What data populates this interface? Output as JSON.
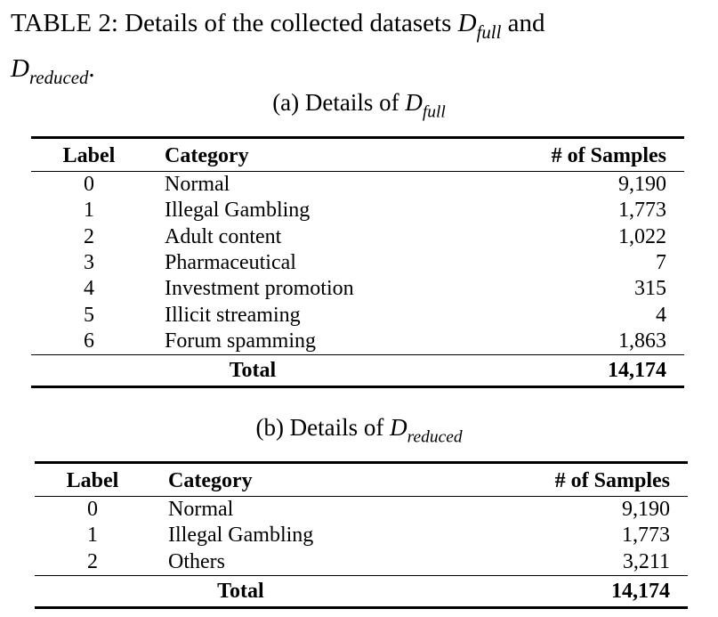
{
  "caption": {
    "prefix": "TABLE 2: Details of the collected datasets ",
    "math_full_base": "D",
    "math_full_sub": "full",
    "connector": " and",
    "math_reduced_base": "D",
    "math_reduced_sub": "reduced",
    "period": "."
  },
  "table_a": {
    "caption_prefix": "(a) Details of ",
    "caption_math_base": "D",
    "caption_math_sub": "full",
    "headers": [
      "Label",
      "Category",
      "# of Samples"
    ],
    "rows": [
      {
        "label": "0",
        "category": "Normal",
        "samples": "9,190"
      },
      {
        "label": "1",
        "category": "Illegal Gambling",
        "samples": "1,773"
      },
      {
        "label": "2",
        "category": "Adult content",
        "samples": "1,022"
      },
      {
        "label": "3",
        "category": "Pharmaceutical",
        "samples": "7"
      },
      {
        "label": "4",
        "category": "Investment promotion",
        "samples": "315"
      },
      {
        "label": "5",
        "category": "Illicit streaming",
        "samples": "4"
      },
      {
        "label": "6",
        "category": "Forum spamming",
        "samples": "1,863"
      }
    ],
    "total_label": "Total",
    "total_value": "14,174"
  },
  "table_b": {
    "caption_prefix": "(b) Details of ",
    "caption_math_base": "D",
    "caption_math_sub": "reduced",
    "headers": [
      "Label",
      "Category",
      "# of Samples"
    ],
    "rows": [
      {
        "label": "0",
        "category": "Normal",
        "samples": "9,190"
      },
      {
        "label": "1",
        "category": "Illegal Gambling",
        "samples": "1,773"
      },
      {
        "label": "2",
        "category": "Others",
        "samples": "3,211"
      }
    ],
    "total_label": "Total",
    "total_value": "14,174"
  }
}
